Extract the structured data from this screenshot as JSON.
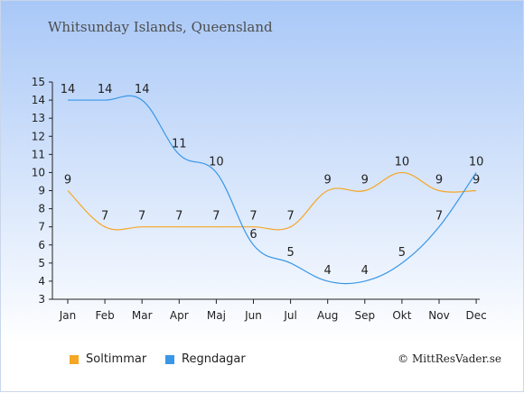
{
  "chart_data": {
    "type": "line",
    "title": "Whitsunday Islands, Queensland",
    "categories": [
      "Jan",
      "Feb",
      "Mar",
      "Apr",
      "Maj",
      "Jun",
      "Jul",
      "Aug",
      "Sep",
      "Okt",
      "Nov",
      "Dec"
    ],
    "ylim": [
      3,
      15
    ],
    "yticks": [
      3,
      4,
      5,
      6,
      7,
      8,
      9,
      10,
      11,
      12,
      13,
      14,
      15
    ],
    "grid": false,
    "legend_position": "bottom-left",
    "series": [
      {
        "name": "Soltimmar",
        "color": "#f5a623",
        "values": [
          9,
          7,
          7,
          7,
          7,
          7,
          7,
          9,
          9,
          10,
          9,
          9
        ]
      },
      {
        "name": "Regndagar",
        "color": "#3a97e8",
        "values": [
          14,
          14,
          14,
          11,
          10,
          6,
          5,
          4,
          4,
          5,
          7,
          10
        ]
      }
    ]
  },
  "credit": "© MittResVader.se"
}
